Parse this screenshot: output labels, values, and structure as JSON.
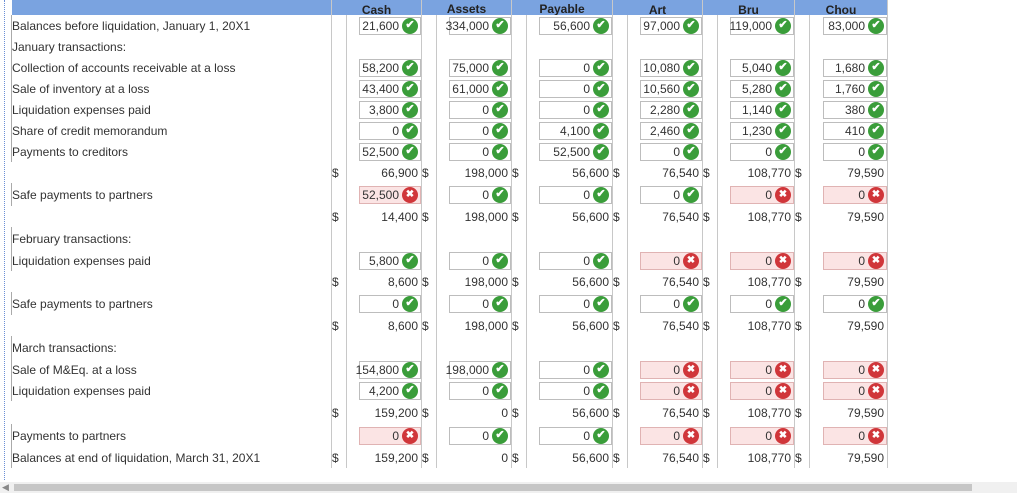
{
  "headers": [
    "",
    "Cash",
    "Assets",
    "Payable",
    "Art",
    "Bru",
    "Chou"
  ],
  "header_labels": {
    "cash": "Cash",
    "assets": "Assets",
    "payable": "Payable",
    "art": "Art",
    "bru": "Bru",
    "chou": "Chou"
  },
  "rows": [
    {
      "label": "Balances before liquidation, January 1, 20X1",
      "indent": false,
      "kind": "input",
      "cells": [
        {
          "v": "21,600",
          "s": "ok"
        },
        {
          "v": "334,000",
          "s": "ok"
        },
        {
          "v": "56,600",
          "s": "ok"
        },
        {
          "v": "97,000",
          "s": "ok"
        },
        {
          "v": "119,000",
          "s": "ok"
        },
        {
          "v": "83,000",
          "s": "ok"
        }
      ]
    },
    {
      "label": "January transactions:",
      "indent": false,
      "kind": "section"
    },
    {
      "label": "Collection of accounts receivable at a loss",
      "indent": true,
      "kind": "input",
      "cells": [
        {
          "v": "58,200",
          "s": "ok"
        },
        {
          "v": "75,000",
          "s": "ok"
        },
        {
          "v": "0",
          "s": "ok"
        },
        {
          "v": "10,080",
          "s": "ok"
        },
        {
          "v": "5,040",
          "s": "ok"
        },
        {
          "v": "1,680",
          "s": "ok"
        }
      ]
    },
    {
      "label": "Sale of inventory at a loss",
      "indent": true,
      "kind": "input",
      "cells": [
        {
          "v": "43,400",
          "s": "ok"
        },
        {
          "v": "61,000",
          "s": "ok"
        },
        {
          "v": "0",
          "s": "ok"
        },
        {
          "v": "10,560",
          "s": "ok"
        },
        {
          "v": "5,280",
          "s": "ok"
        },
        {
          "v": "1,760",
          "s": "ok"
        }
      ]
    },
    {
      "label": "Liquidation expenses paid",
      "indent": true,
      "kind": "input",
      "cells": [
        {
          "v": "3,800",
          "s": "ok"
        },
        {
          "v": "0",
          "s": "ok"
        },
        {
          "v": "0",
          "s": "ok"
        },
        {
          "v": "2,280",
          "s": "ok"
        },
        {
          "v": "1,140",
          "s": "ok"
        },
        {
          "v": "380",
          "s": "ok"
        }
      ]
    },
    {
      "label": "Share of credit memorandum",
      "indent": true,
      "kind": "input",
      "cells": [
        {
          "v": "0",
          "s": "ok"
        },
        {
          "v": "0",
          "s": "ok"
        },
        {
          "v": "4,100",
          "s": "ok"
        },
        {
          "v": "2,460",
          "s": "ok"
        },
        {
          "v": "1,230",
          "s": "ok"
        },
        {
          "v": "410",
          "s": "ok"
        }
      ]
    },
    {
      "label": "Payments to creditors",
      "indent": true,
      "kind": "input",
      "cells": [
        {
          "v": "52,500",
          "s": "ok"
        },
        {
          "v": "0",
          "s": "ok"
        },
        {
          "v": "52,500",
          "s": "ok"
        },
        {
          "v": "0",
          "s": "ok"
        },
        {
          "v": "0",
          "s": "ok"
        },
        {
          "v": "0",
          "s": "ok"
        }
      ]
    },
    {
      "label": "",
      "kind": "total",
      "cells": [
        "66,900",
        "198,000",
        "56,600",
        "76,540",
        "108,770",
        "79,590"
      ]
    },
    {
      "label": "Safe payments to partners",
      "indent": false,
      "kind": "input",
      "bordered": true,
      "cells": [
        {
          "v": "52,500",
          "s": "x"
        },
        {
          "v": "0",
          "s": "ok"
        },
        {
          "v": "0",
          "s": "ok"
        },
        {
          "v": "0",
          "s": "ok"
        },
        {
          "v": "0",
          "s": "x"
        },
        {
          "v": "0",
          "s": "x"
        }
      ]
    },
    {
      "label": "",
      "kind": "total",
      "cells": [
        "14,400",
        "198,000",
        "56,600",
        "76,540",
        "108,770",
        "79,590"
      ]
    },
    {
      "label": "February transactions:",
      "indent": false,
      "kind": "section"
    },
    {
      "label": "Liquidation expenses paid",
      "indent": true,
      "kind": "input",
      "cells": [
        {
          "v": "5,800",
          "s": "ok"
        },
        {
          "v": "0",
          "s": "ok"
        },
        {
          "v": "0",
          "s": "ok"
        },
        {
          "v": "0",
          "s": "x"
        },
        {
          "v": "0",
          "s": "x"
        },
        {
          "v": "0",
          "s": "x"
        }
      ]
    },
    {
      "label": "",
      "kind": "total",
      "cells": [
        "8,600",
        "198,000",
        "56,600",
        "76,540",
        "108,770",
        "79,590"
      ]
    },
    {
      "label": "Safe payments to partners",
      "indent": false,
      "kind": "input",
      "bordered": true,
      "cells": [
        {
          "v": "0",
          "s": "ok"
        },
        {
          "v": "0",
          "s": "ok"
        },
        {
          "v": "0",
          "s": "ok"
        },
        {
          "v": "0",
          "s": "ok"
        },
        {
          "v": "0",
          "s": "ok"
        },
        {
          "v": "0",
          "s": "ok"
        }
      ]
    },
    {
      "label": "",
      "kind": "total",
      "cells": [
        "8,600",
        "198,000",
        "56,600",
        "76,540",
        "108,770",
        "79,590"
      ]
    },
    {
      "label": "March transactions:",
      "indent": false,
      "kind": "section"
    },
    {
      "label": "Sale of M&Eq. at a loss",
      "indent": true,
      "kind": "input",
      "cells": [
        {
          "v": "154,800",
          "s": "ok"
        },
        {
          "v": "198,000",
          "s": "ok"
        },
        {
          "v": "0",
          "s": "ok"
        },
        {
          "v": "0",
          "s": "x"
        },
        {
          "v": "0",
          "s": "x"
        },
        {
          "v": "0",
          "s": "x"
        }
      ]
    },
    {
      "label": "Liquidation expenses paid",
      "indent": true,
      "kind": "input",
      "cells": [
        {
          "v": "4,200",
          "s": "ok"
        },
        {
          "v": "0",
          "s": "ok"
        },
        {
          "v": "0",
          "s": "ok"
        },
        {
          "v": "0",
          "s": "x"
        },
        {
          "v": "0",
          "s": "x"
        },
        {
          "v": "0",
          "s": "x"
        }
      ]
    },
    {
      "label": "",
      "kind": "total",
      "cells": [
        "159,200",
        "0",
        "56,600",
        "76,540",
        "108,770",
        "79,590"
      ]
    },
    {
      "label": "Payments to partners",
      "indent": true,
      "kind": "input",
      "cells": [
        {
          "v": "0",
          "s": "x"
        },
        {
          "v": "0",
          "s": "ok"
        },
        {
          "v": "0",
          "s": "ok"
        },
        {
          "v": "0",
          "s": "x"
        },
        {
          "v": "0",
          "s": "x"
        },
        {
          "v": "0",
          "s": "x"
        }
      ]
    },
    {
      "label": "Balances at end of liquidation, March 31, 20X1",
      "indent": false,
      "kind": "final",
      "bordered": true,
      "cells": [
        "159,200",
        "0",
        "56,600",
        "76,540",
        "108,770",
        "79,590"
      ]
    }
  ],
  "currency_symbol": "$",
  "status_icons": {
    "ok": "check-icon",
    "x": "cross-icon"
  },
  "colors": {
    "header_bg": "#7aa3e0",
    "ok": "#3a9d3a",
    "error": "#d0363a",
    "error_bg": "#fbe4e4"
  }
}
